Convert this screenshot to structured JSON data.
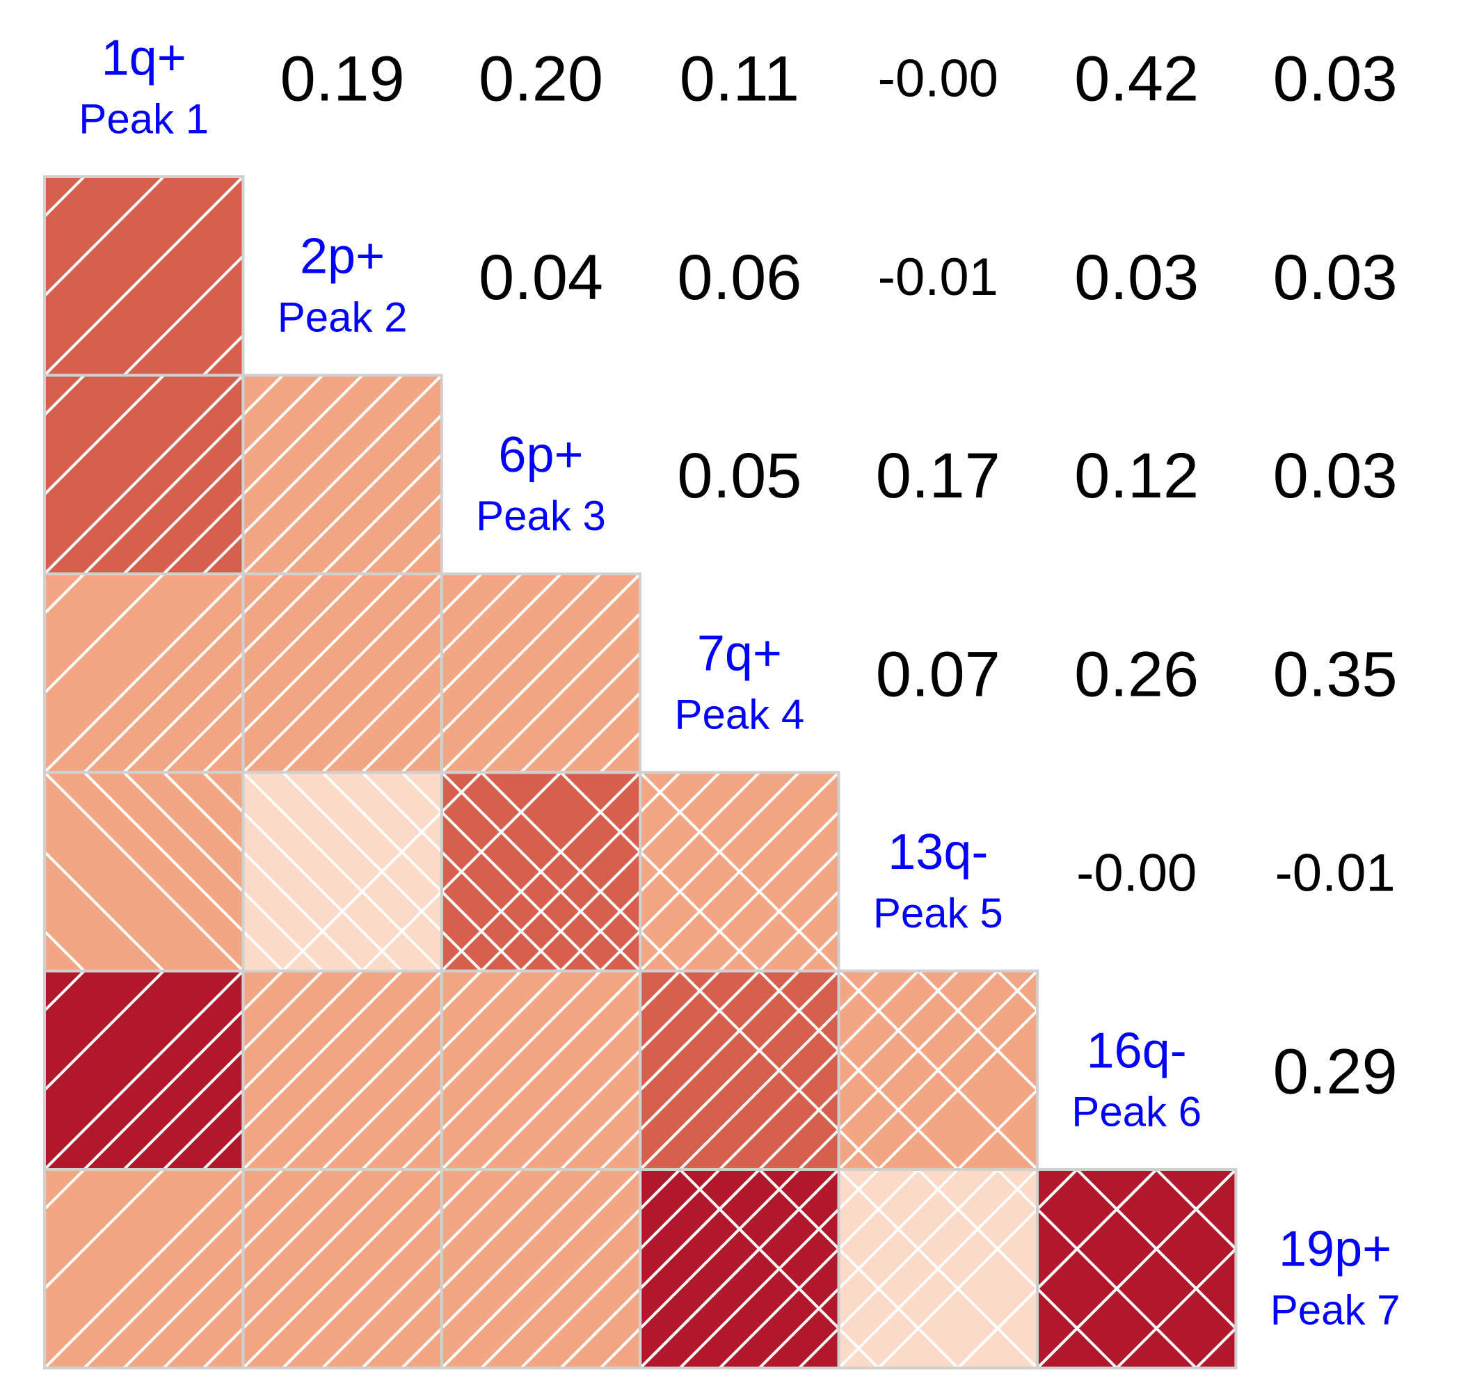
{
  "chart_data": {
    "type": "heatmap",
    "variables": [
      {
        "name": "1q+",
        "peak": "Peak 1"
      },
      {
        "name": "2p+",
        "peak": "Peak 2"
      },
      {
        "name": "6p+",
        "peak": "Peak 3"
      },
      {
        "name": "7q+",
        "peak": "Peak 4"
      },
      {
        "name": "13q-",
        "peak": "Peak 5"
      },
      {
        "name": "16q-",
        "peak": "Peak 6"
      },
      {
        "name": "19p+",
        "peak": "Peak 7"
      }
    ],
    "cells": [
      {
        "row": 0,
        "col": 1,
        "value": 0.19,
        "label": "0.19"
      },
      {
        "row": 0,
        "col": 2,
        "value": 0.2,
        "label": "0.20"
      },
      {
        "row": 0,
        "col": 3,
        "value": 0.11,
        "label": "0.11"
      },
      {
        "row": 0,
        "col": 4,
        "value": -0.0,
        "label": "-0.00"
      },
      {
        "row": 0,
        "col": 5,
        "value": 0.42,
        "label": "0.42"
      },
      {
        "row": 0,
        "col": 6,
        "value": 0.03,
        "label": "0.03"
      },
      {
        "row": 1,
        "col": 2,
        "value": 0.04,
        "label": "0.04"
      },
      {
        "row": 1,
        "col": 3,
        "value": 0.06,
        "label": "0.06"
      },
      {
        "row": 1,
        "col": 4,
        "value": -0.01,
        "label": "-0.01"
      },
      {
        "row": 1,
        "col": 5,
        "value": 0.03,
        "label": "0.03"
      },
      {
        "row": 1,
        "col": 6,
        "value": 0.03,
        "label": "0.03"
      },
      {
        "row": 2,
        "col": 3,
        "value": 0.05,
        "label": "0.05"
      },
      {
        "row": 2,
        "col": 4,
        "value": 0.17,
        "label": "0.17"
      },
      {
        "row": 2,
        "col": 5,
        "value": 0.12,
        "label": "0.12"
      },
      {
        "row": 2,
        "col": 6,
        "value": 0.03,
        "label": "0.03"
      },
      {
        "row": 3,
        "col": 4,
        "value": 0.07,
        "label": "0.07"
      },
      {
        "row": 3,
        "col": 5,
        "value": 0.26,
        "label": "0.26"
      },
      {
        "row": 3,
        "col": 6,
        "value": 0.35,
        "label": "0.35"
      },
      {
        "row": 4,
        "col": 5,
        "value": -0.0,
        "label": "-0.00"
      },
      {
        "row": 4,
        "col": 6,
        "value": -0.01,
        "label": "-0.01"
      },
      {
        "row": 5,
        "col": 6,
        "value": 0.29,
        "label": "0.29"
      }
    ],
    "lower_triangle": "color-shaded squares with diagonal hatching (positive: '/', negative: '\\')",
    "upper_triangle": "numeric coefficients",
    "diagonal": "variable labels",
    "colors": {
      "label": "#0000ff",
      "number": "#000000",
      "grid": "#d0d0d0",
      "hatch": "#ffffff",
      "negative": "#fbdac8",
      "weak": "#f2a683",
      "medium": "#d6604d",
      "strong": "#b2182b"
    }
  }
}
